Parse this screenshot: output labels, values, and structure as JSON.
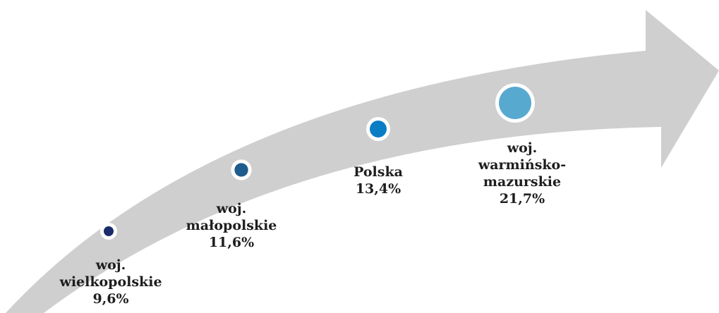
{
  "chart_data": {
    "type": "bubble",
    "categories": [
      "woj. wielkopolskie",
      "woj. małopolskie",
      "Polska",
      "woj. warmińsko-mazurskie"
    ],
    "values": [
      9.6,
      11.6,
      13.4,
      21.7
    ],
    "value_labels": [
      "9,6%",
      "11,6%",
      "13,4%",
      "21,7%"
    ],
    "colors": [
      "#1b2c6b",
      "#1d5c8c",
      "#0b7dc5",
      "#58a9d0"
    ],
    "arrow_color": "#cfcfd0"
  }
}
